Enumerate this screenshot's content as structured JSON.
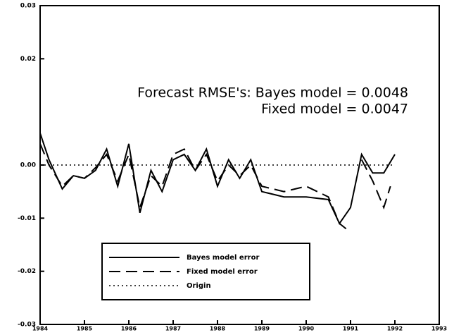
{
  "chart_data": {
    "type": "line",
    "annotations": [
      "Forecast RMSE's: Bayes model = 0.0048",
      "Fixed model = 0.0047"
    ],
    "xlim": [
      1984,
      1993
    ],
    "xticks": [
      1984,
      1985,
      1986,
      1987,
      1988,
      1989,
      1990,
      1991,
      1992,
      1993
    ],
    "ylim": [
      -0.03,
      0.03
    ],
    "yticks": [
      -0.03,
      -0.02,
      -0.01,
      {
        "value": 0,
        "label": "0.00"
      },
      0.02,
      0.03
    ],
    "legend": "bottom-left",
    "series": [
      {
        "name": "Bayes model error",
        "color": "#000000",
        "style": "solid",
        "x": [
          1984.0,
          1984.2,
          1984.5,
          1984.75,
          1985.0,
          1985.25,
          1985.5,
          1985.75,
          1986.0,
          1986.25,
          1986.5,
          1986.75,
          1987.0,
          1987.25,
          1987.5,
          1987.75,
          1988.0,
          1988.25,
          1988.5,
          1988.75,
          1989.0,
          1989.5,
          1990.0,
          1990.5,
          1990.75,
          1991.0,
          1991.25,
          1991.5,
          1991.75,
          1992.0
        ],
        "values": [
          0.006,
          0.001,
          -0.0045,
          -0.002,
          -0.0025,
          -0.001,
          0.003,
          -0.004,
          0.004,
          -0.009,
          -0.001,
          -0.005,
          0.001,
          0.002,
          -0.001,
          0.003,
          -0.004,
          0.001,
          -0.0025,
          0.001,
          -0.005,
          -0.006,
          -0.006,
          -0.0065,
          -0.011,
          -0.008,
          0.002,
          -0.0015,
          -0.0015,
          0.002
        ]
      },
      {
        "name": "Fixed model error",
        "color": "#000000",
        "style": "dashed",
        "x": [
          1984.0,
          1984.2,
          1984.5,
          1984.75,
          1985.0,
          1985.25,
          1985.5,
          1985.75,
          1986.0,
          1986.25,
          1986.5,
          1986.75,
          1987.0,
          1987.25,
          1987.5,
          1987.75,
          1988.0,
          1988.25,
          1988.5,
          1988.75,
          1989.0,
          1989.5,
          1990.0,
          1990.5,
          1990.75,
          1990.9,
          1991.0,
          1991.25,
          1991.5,
          1991.75,
          1991.9
        ],
        "values": [
          0.004,
          0.0,
          -0.004,
          -0.002,
          -0.0025,
          -0.0005,
          0.002,
          -0.003,
          0.002,
          -0.008,
          -0.002,
          -0.004,
          0.002,
          0.003,
          -0.001,
          0.002,
          -0.003,
          0.0,
          -0.002,
          0.0,
          -0.004,
          -0.005,
          -0.004,
          -0.006,
          -0.011,
          -0.012,
          null,
          0.001,
          -0.003,
          -0.008,
          -0.004
        ]
      },
      {
        "name": "Origin",
        "color": "#000000",
        "style": "dotted",
        "x": [
          1984,
          1992
        ],
        "values": [
          0,
          0
        ]
      }
    ]
  }
}
